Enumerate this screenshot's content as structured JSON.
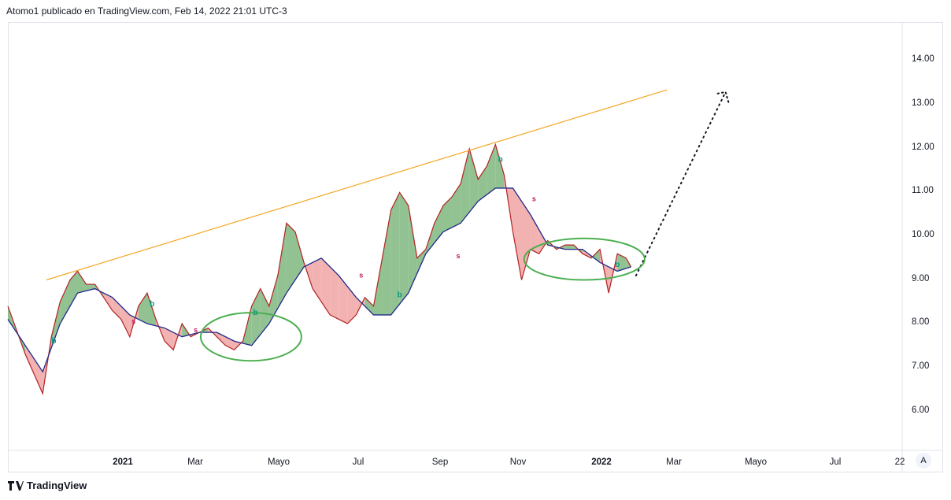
{
  "header": {
    "text": "Atomo1 publicado en TradingView.com, Feb 14, 2022 21:01 UTC-3"
  },
  "footer": {
    "brand": "TradingView"
  },
  "auto_button": {
    "label": "A",
    "icon": "auto-scale-icon"
  },
  "colors": {
    "price_line": "#b22222",
    "ma_line": "#1f2a8c",
    "bull_fill": "#7fb77e",
    "bear_fill": "#f0a5a5",
    "trendline": "#f5a623",
    "ellipse": "#4caf50",
    "projection": "#131722"
  },
  "chart_data": {
    "type": "line",
    "title": "",
    "xlabel": "",
    "ylabel": "",
    "ylim": [
      5.0,
      14.8
    ],
    "x_ticks": [
      "2021",
      "Mar",
      "Mayo",
      "Jul",
      "Sep",
      "Nov",
      "2022",
      "Mar",
      "Mayo",
      "Jul",
      "22"
    ],
    "y_ticks": [
      "14.00",
      "13.00",
      "12.00",
      "11.00",
      "10.00",
      "9.00",
      "8.00",
      "7.00",
      "6.00"
    ],
    "x_range": [
      "2020-10-01",
      "2022-09-20"
    ],
    "series": [
      {
        "role": "price",
        "x": [
          "2020-10-01",
          "2020-10-15",
          "2020-10-29",
          "2020-11-05",
          "2020-11-12",
          "2020-11-20",
          "2020-11-26",
          "2020-12-03",
          "2020-12-10",
          "2020-12-17",
          "2020-12-24",
          "2020-12-31",
          "2021-01-07",
          "2021-01-14",
          "2021-01-21",
          "2021-01-28",
          "2021-02-04",
          "2021-02-11",
          "2021-02-18",
          "2021-02-25",
          "2021-03-04",
          "2021-03-11",
          "2021-03-18",
          "2021-03-25",
          "2021-04-01",
          "2021-04-08",
          "2021-04-15",
          "2021-04-22",
          "2021-04-29",
          "2021-05-06",
          "2021-05-13",
          "2021-05-20",
          "2021-05-27",
          "2021-06-03",
          "2021-06-10",
          "2021-06-17",
          "2021-06-24",
          "2021-07-01",
          "2021-07-08",
          "2021-07-15",
          "2021-07-22",
          "2021-07-29",
          "2021-08-05",
          "2021-08-12",
          "2021-08-19",
          "2021-08-26",
          "2021-09-02",
          "2021-09-09",
          "2021-09-16",
          "2021-09-23",
          "2021-09-30",
          "2021-10-07",
          "2021-10-14",
          "2021-10-21",
          "2021-10-28",
          "2021-11-04",
          "2021-11-11",
          "2021-11-18",
          "2021-11-25",
          "2021-12-02",
          "2021-12-09",
          "2021-12-16",
          "2021-12-23",
          "2021-12-30",
          "2022-01-06",
          "2022-01-13",
          "2022-01-20",
          "2022-01-27",
          "2022-02-03",
          "2022-02-10",
          "2022-02-14"
        ],
        "y": [
          8.3,
          7.2,
          6.3,
          7.6,
          8.4,
          8.9,
          9.1,
          8.8,
          8.8,
          8.5,
          8.2,
          8.0,
          7.6,
          8.3,
          8.6,
          8.0,
          7.5,
          7.3,
          7.9,
          7.6,
          7.7,
          7.8,
          7.6,
          7.4,
          7.3,
          7.5,
          8.3,
          8.7,
          8.3,
          9.0,
          10.2,
          10.0,
          9.3,
          8.7,
          8.4,
          8.1,
          8.0,
          7.9,
          8.1,
          8.5,
          8.3,
          9.4,
          10.5,
          10.9,
          10.6,
          9.4,
          9.6,
          10.2,
          10.6,
          10.8,
          11.1,
          11.9,
          11.2,
          11.5,
          12.0,
          11.3,
          10.0,
          8.9,
          9.6,
          9.5,
          9.8,
          9.6,
          9.7,
          9.7,
          9.5,
          9.4,
          9.6,
          8.6,
          9.5,
          9.4,
          9.2
        ]
      },
      {
        "role": "moving_average",
        "x": [
          "2020-10-01",
          "2020-10-29",
          "2020-11-12",
          "2020-11-26",
          "2020-12-10",
          "2020-12-24",
          "2021-01-07",
          "2021-01-21",
          "2021-02-04",
          "2021-02-18",
          "2021-03-04",
          "2021-03-18",
          "2021-04-01",
          "2021-04-15",
          "2021-04-29",
          "2021-05-13",
          "2021-05-27",
          "2021-06-10",
          "2021-06-24",
          "2021-07-08",
          "2021-07-22",
          "2021-08-05",
          "2021-08-19",
          "2021-09-02",
          "2021-09-16",
          "2021-09-30",
          "2021-10-14",
          "2021-10-28",
          "2021-11-11",
          "2021-11-25",
          "2021-12-09",
          "2021-12-23",
          "2022-01-06",
          "2022-01-20",
          "2022-02-03",
          "2022-02-14"
        ],
        "y": [
          8.0,
          6.8,
          7.9,
          8.6,
          8.7,
          8.5,
          8.1,
          7.9,
          7.8,
          7.6,
          7.7,
          7.7,
          7.5,
          7.4,
          7.9,
          8.6,
          9.2,
          9.4,
          9.0,
          8.5,
          8.1,
          8.1,
          8.6,
          9.5,
          10.0,
          10.2,
          10.7,
          11.0,
          11.0,
          10.4,
          9.7,
          9.6,
          9.6,
          9.3,
          9.1,
          9.2
        ]
      }
    ],
    "trendline": {
      "x": [
        "2020-11-01",
        "2022-03-15"
      ],
      "y": [
        8.9,
        13.25
      ]
    },
    "projection": {
      "x": [
        "2022-02-18",
        "2022-05-01"
      ],
      "y": [
        9.0,
        13.2
      ]
    },
    "highlight_ellipses": [
      {
        "x": [
          "2021-03-05",
          "2021-05-25"
        ],
        "y": [
          7.05,
          8.15
        ]
      },
      {
        "x": [
          "2021-11-20",
          "2022-02-25"
        ],
        "y": [
          8.9,
          9.85
        ]
      }
    ],
    "signals": [
      {
        "label": "b",
        "x": "2020-11-07",
        "y": 7.45
      },
      {
        "label": "b",
        "x": "2021-01-25",
        "y": 8.3
      },
      {
        "label": "b",
        "x": "2021-04-18",
        "y": 8.1
      },
      {
        "label": "b",
        "x": "2021-08-12",
        "y": 8.5
      },
      {
        "label": "b",
        "x": "2021-11-01",
        "y": 11.6
      },
      {
        "label": "b",
        "x": "2022-02-03",
        "y": 9.2
      },
      {
        "label": "s",
        "x": "2021-01-10",
        "y": 7.9
      },
      {
        "label": "s",
        "x": "2021-03-01",
        "y": 7.7
      },
      {
        "label": "s",
        "x": "2021-07-12",
        "y": 8.95
      },
      {
        "label": "s",
        "x": "2021-09-28",
        "y": 9.4
      },
      {
        "label": "s",
        "x": "2021-11-28",
        "y": 10.7
      }
    ]
  }
}
